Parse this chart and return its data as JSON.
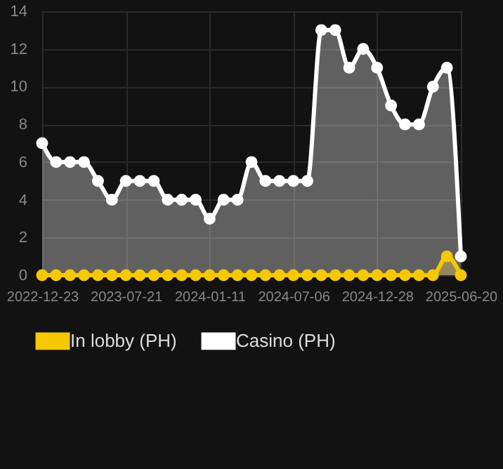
{
  "chart_data": {
    "type": "area",
    "categories": [
      "2022-12-23",
      null,
      null,
      null,
      null,
      null,
      "2023-07-21",
      null,
      null,
      null,
      null,
      null,
      "2024-01-11",
      null,
      null,
      null,
      null,
      null,
      "2024-07-06",
      null,
      null,
      null,
      null,
      null,
      "2024-12-28",
      null,
      null,
      null,
      null,
      null,
      "2025-06-20"
    ],
    "series": [
      {
        "name": "In lobby (PH)",
        "color": "#f5c800",
        "values": [
          0,
          0,
          0,
          0,
          0,
          0,
          0,
          0,
          0,
          0,
          0,
          0,
          0,
          0,
          0,
          0,
          0,
          0,
          0,
          0,
          0,
          0,
          0,
          0,
          0,
          0,
          0,
          0,
          0,
          1,
          0
        ]
      },
      {
        "name": "Casino (PH)",
        "color": "#ffffff",
        "values": [
          7,
          6,
          6,
          6,
          5,
          4,
          5,
          5,
          5,
          4,
          4,
          4,
          3,
          4,
          4,
          6,
          5,
          5,
          5,
          5,
          13,
          13,
          11,
          12,
          11,
          9,
          8,
          8,
          10,
          11,
          1
        ]
      }
    ],
    "ylim": [
      0,
      14
    ],
    "yticks": [
      0,
      2,
      4,
      6,
      8,
      10,
      12,
      14
    ],
    "grid": true,
    "legend": "bottom",
    "marker": "circle"
  }
}
